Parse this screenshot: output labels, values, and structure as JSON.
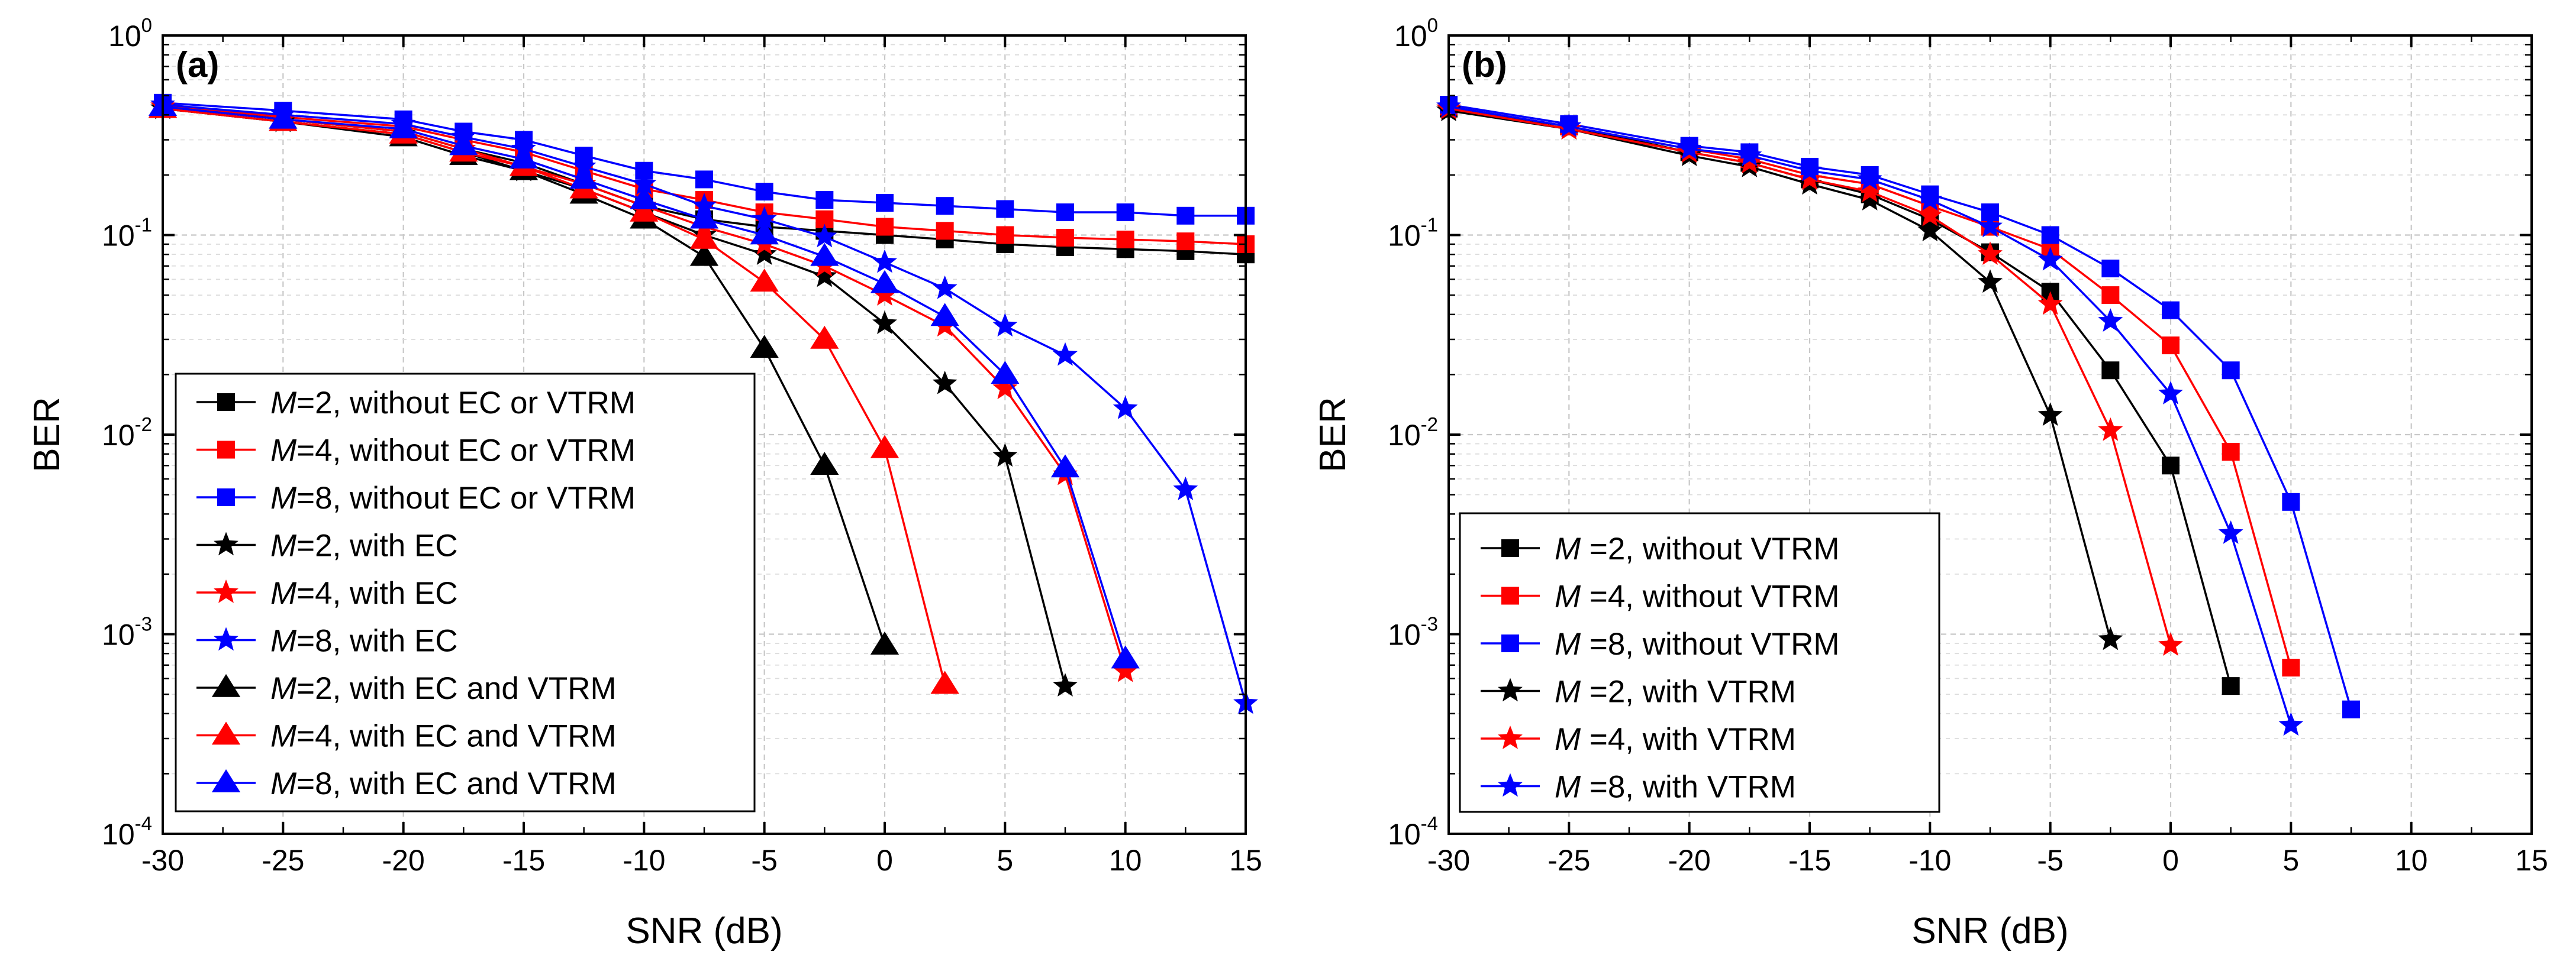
{
  "chart_data": [
    {
      "type": "line",
      "panel_label": "(a)",
      "xlabel": "SNR (dB)",
      "ylabel": "BER",
      "yscale": "log",
      "xlim": [
        -30,
        15
      ],
      "ylim": [
        0.0001,
        1
      ],
      "xticks": [
        -30,
        -25,
        -20,
        -15,
        -10,
        -5,
        0,
        5,
        10,
        15
      ],
      "xtick_labels": [
        "-30",
        "-25",
        "-20",
        "-15",
        "-10",
        "-5",
        "0",
        "5",
        "10",
        "15"
      ],
      "yticks": [
        0.0001,
        0.001,
        0.01,
        0.1,
        1
      ],
      "ytick_labels": [
        {
          "base": "10",
          "exp": "-4"
        },
        {
          "base": "10",
          "exp": "-3"
        },
        {
          "base": "10",
          "exp": "-2"
        },
        {
          "base": "10",
          "exp": "-1"
        },
        {
          "base": "10",
          "exp": "0"
        }
      ],
      "grid": true,
      "legend_position": "bottom-left",
      "series": [
        {
          "prefix": "M",
          "name": "=2, without EC or VTRM",
          "color": "#000000",
          "marker": "square",
          "x": [
            -30,
            -25,
            -20,
            -17.5,
            -15,
            -12.5,
            -10,
            -7.5,
            -5,
            -2.5,
            0,
            2.5,
            5,
            7.5,
            10,
            12.5,
            15
          ],
          "y": [
            0.45,
            0.38,
            0.33,
            0.27,
            0.23,
            0.18,
            0.14,
            0.12,
            0.11,
            0.105,
            0.1,
            0.095,
            0.09,
            0.087,
            0.085,
            0.083,
            0.08
          ]
        },
        {
          "prefix": "M",
          "name": "=4, without EC or VTRM",
          "color": "#ff0000",
          "marker": "square",
          "x": [
            -30,
            -25,
            -20,
            -17.5,
            -15,
            -12.5,
            -10,
            -7.5,
            -5,
            -2.5,
            0,
            2.5,
            5,
            7.5,
            10,
            12.5,
            15
          ],
          "y": [
            0.45,
            0.39,
            0.35,
            0.3,
            0.26,
            0.21,
            0.17,
            0.15,
            0.13,
            0.12,
            0.11,
            0.105,
            0.1,
            0.097,
            0.095,
            0.093,
            0.09
          ]
        },
        {
          "prefix": "M",
          "name": "=8, without EC or VTRM",
          "color": "#0000ff",
          "marker": "square",
          "x": [
            -30,
            -25,
            -20,
            -17.5,
            -15,
            -12.5,
            -10,
            -7.5,
            -5,
            -2.5,
            0,
            2.5,
            5,
            7.5,
            10,
            12.5,
            15
          ],
          "y": [
            0.46,
            0.42,
            0.38,
            0.33,
            0.3,
            0.25,
            0.21,
            0.19,
            0.165,
            0.15,
            0.145,
            0.14,
            0.135,
            0.13,
            0.13,
            0.125,
            0.125
          ]
        },
        {
          "prefix": "M",
          "name": "=2, with EC",
          "color": "#000000",
          "marker": "star",
          "x": [
            -30,
            -25,
            -20,
            -17.5,
            -15,
            -12.5,
            -10,
            -7.5,
            -5,
            -2.5,
            0,
            2.5,
            5,
            7.5
          ],
          "y": [
            0.43,
            0.37,
            0.32,
            0.26,
            0.21,
            0.17,
            0.13,
            0.1,
            0.08,
            0.062,
            0.036,
            0.018,
            0.0078,
            0.00055
          ]
        },
        {
          "prefix": "M",
          "name": "=4, with EC",
          "color": "#ff0000",
          "marker": "star",
          "x": [
            -30,
            -25,
            -20,
            -17.5,
            -15,
            -12.5,
            -10,
            -7.5,
            -5,
            -2.5,
            0,
            2.5,
            5,
            7.5,
            10
          ],
          "y": [
            0.44,
            0.38,
            0.33,
            0.27,
            0.22,
            0.18,
            0.14,
            0.11,
            0.09,
            0.07,
            0.05,
            0.035,
            0.017,
            0.0063,
            0.00065
          ]
        },
        {
          "prefix": "M",
          "name": "=8, with EC",
          "color": "#0000ff",
          "marker": "star",
          "x": [
            -30,
            -25,
            -20,
            -17.5,
            -15,
            -12.5,
            -10,
            -7.5,
            -5,
            -2.5,
            0,
            2.5,
            5,
            7.5,
            10,
            12.5,
            15
          ],
          "y": [
            0.45,
            0.4,
            0.36,
            0.31,
            0.27,
            0.22,
            0.18,
            0.14,
            0.12,
            0.098,
            0.073,
            0.054,
            0.035,
            0.025,
            0.0135,
            0.0053,
            0.00045
          ]
        },
        {
          "prefix": "M",
          "name": "=2, with EC and VTRM",
          "color": "#000000",
          "marker": "triangle",
          "x": [
            -30,
            -25,
            -20,
            -17.5,
            -15,
            -12.5,
            -10,
            -7.5,
            -5,
            -2.5,
            0
          ],
          "y": [
            0.43,
            0.37,
            0.31,
            0.25,
            0.21,
            0.16,
            0.12,
            0.078,
            0.027,
            0.007,
            0.00088
          ]
        },
        {
          "prefix": "M",
          "name": "=4, with EC and VTRM",
          "color": "#ff0000",
          "marker": "triangle",
          "x": [
            -30,
            -25,
            -20,
            -17.5,
            -15,
            -12.5,
            -10,
            -7.5,
            -5,
            -2.5,
            0,
            2.5
          ],
          "y": [
            0.43,
            0.37,
            0.32,
            0.26,
            0.22,
            0.17,
            0.13,
            0.095,
            0.058,
            0.03,
            0.0085,
            0.00056
          ]
        },
        {
          "prefix": "M",
          "name": "=8, with EC and VTRM",
          "color": "#0000ff",
          "marker": "triangle",
          "x": [
            -30,
            -25,
            -20,
            -17.5,
            -15,
            -12.5,
            -10,
            -7.5,
            -5,
            -2.5,
            0,
            2.5,
            5,
            7.5,
            10
          ],
          "y": [
            0.44,
            0.38,
            0.34,
            0.28,
            0.24,
            0.19,
            0.15,
            0.12,
            0.1,
            0.078,
            0.057,
            0.039,
            0.02,
            0.0068,
            0.00075
          ]
        }
      ]
    },
    {
      "type": "line",
      "panel_label": "(b)",
      "xlabel": "SNR (dB)",
      "ylabel": "BER",
      "yscale": "log",
      "xlim": [
        -30,
        15
      ],
      "ylim": [
        0.0001,
        1
      ],
      "xticks": [
        -30,
        -25,
        -20,
        -15,
        -10,
        -5,
        0,
        5,
        10,
        15
      ],
      "xtick_labels": [
        "-30",
        "-25",
        "-20",
        "-15",
        "-10",
        "-5",
        "0",
        "5",
        "10",
        "15"
      ],
      "yticks": [
        0.0001,
        0.001,
        0.01,
        0.1,
        1
      ],
      "ytick_labels": [
        {
          "base": "10",
          "exp": "-4"
        },
        {
          "base": "10",
          "exp": "-3"
        },
        {
          "base": "10",
          "exp": "-2"
        },
        {
          "base": "10",
          "exp": "-1"
        },
        {
          "base": "10",
          "exp": "0"
        }
      ],
      "grid": true,
      "legend_position": "bottom-left",
      "series": [
        {
          "prefix": "M",
          "name": " =2, without VTRM",
          "color": "#000000",
          "marker": "square",
          "x": [
            -30,
            -25,
            -20,
            -17.5,
            -15,
            -12.5,
            -10,
            -7.5,
            -5,
            -2.5,
            0,
            2.5
          ],
          "y": [
            0.43,
            0.35,
            0.26,
            0.23,
            0.19,
            0.16,
            0.12,
            0.082,
            0.052,
            0.021,
            0.007,
            0.00055
          ]
        },
        {
          "prefix": "M",
          "name": " =4, without VTRM",
          "color": "#ff0000",
          "marker": "square",
          "x": [
            -30,
            -25,
            -20,
            -17.5,
            -15,
            -12.5,
            -10,
            -7.5,
            -5,
            -2.5,
            0,
            2.5,
            5
          ],
          "y": [
            0.44,
            0.35,
            0.27,
            0.24,
            0.2,
            0.18,
            0.14,
            0.11,
            0.085,
            0.05,
            0.028,
            0.0082,
            0.00068
          ]
        },
        {
          "prefix": "M",
          "name": " =8, without VTRM",
          "color": "#0000ff",
          "marker": "square",
          "x": [
            -30,
            -25,
            -20,
            -17.5,
            -15,
            -12.5,
            -10,
            -7.5,
            -5,
            -2.5,
            0,
            2.5,
            5,
            7.5
          ],
          "y": [
            0.45,
            0.36,
            0.28,
            0.26,
            0.22,
            0.2,
            0.16,
            0.13,
            0.1,
            0.068,
            0.042,
            0.021,
            0.0046,
            0.00042
          ]
        },
        {
          "prefix": "M",
          "name": " =2, with VTRM",
          "color": "#000000",
          "marker": "star",
          "x": [
            -30,
            -25,
            -20,
            -17.5,
            -15,
            -12.5,
            -10,
            -7.5,
            -5,
            -2.5
          ],
          "y": [
            0.42,
            0.34,
            0.25,
            0.22,
            0.18,
            0.15,
            0.105,
            0.058,
            0.0125,
            0.00094
          ]
        },
        {
          "prefix": "M",
          "name": " =4, with VTRM",
          "color": "#ff0000",
          "marker": "star",
          "x": [
            -30,
            -25,
            -20,
            -17.5,
            -15,
            -12.5,
            -10,
            -7.5,
            -5,
            -2.5,
            0
          ],
          "y": [
            0.43,
            0.34,
            0.26,
            0.23,
            0.19,
            0.165,
            0.125,
            0.08,
            0.045,
            0.0105,
            0.00088
          ]
        },
        {
          "prefix": "M",
          "name": " =8, with VTRM",
          "color": "#0000ff",
          "marker": "star",
          "x": [
            -30,
            -25,
            -20,
            -17.5,
            -15,
            -12.5,
            -10,
            -7.5,
            -5,
            -2.5,
            0,
            2.5,
            5
          ],
          "y": [
            0.44,
            0.35,
            0.27,
            0.25,
            0.21,
            0.19,
            0.15,
            0.11,
            0.075,
            0.037,
            0.016,
            0.0032,
            0.00035
          ]
        }
      ]
    }
  ]
}
